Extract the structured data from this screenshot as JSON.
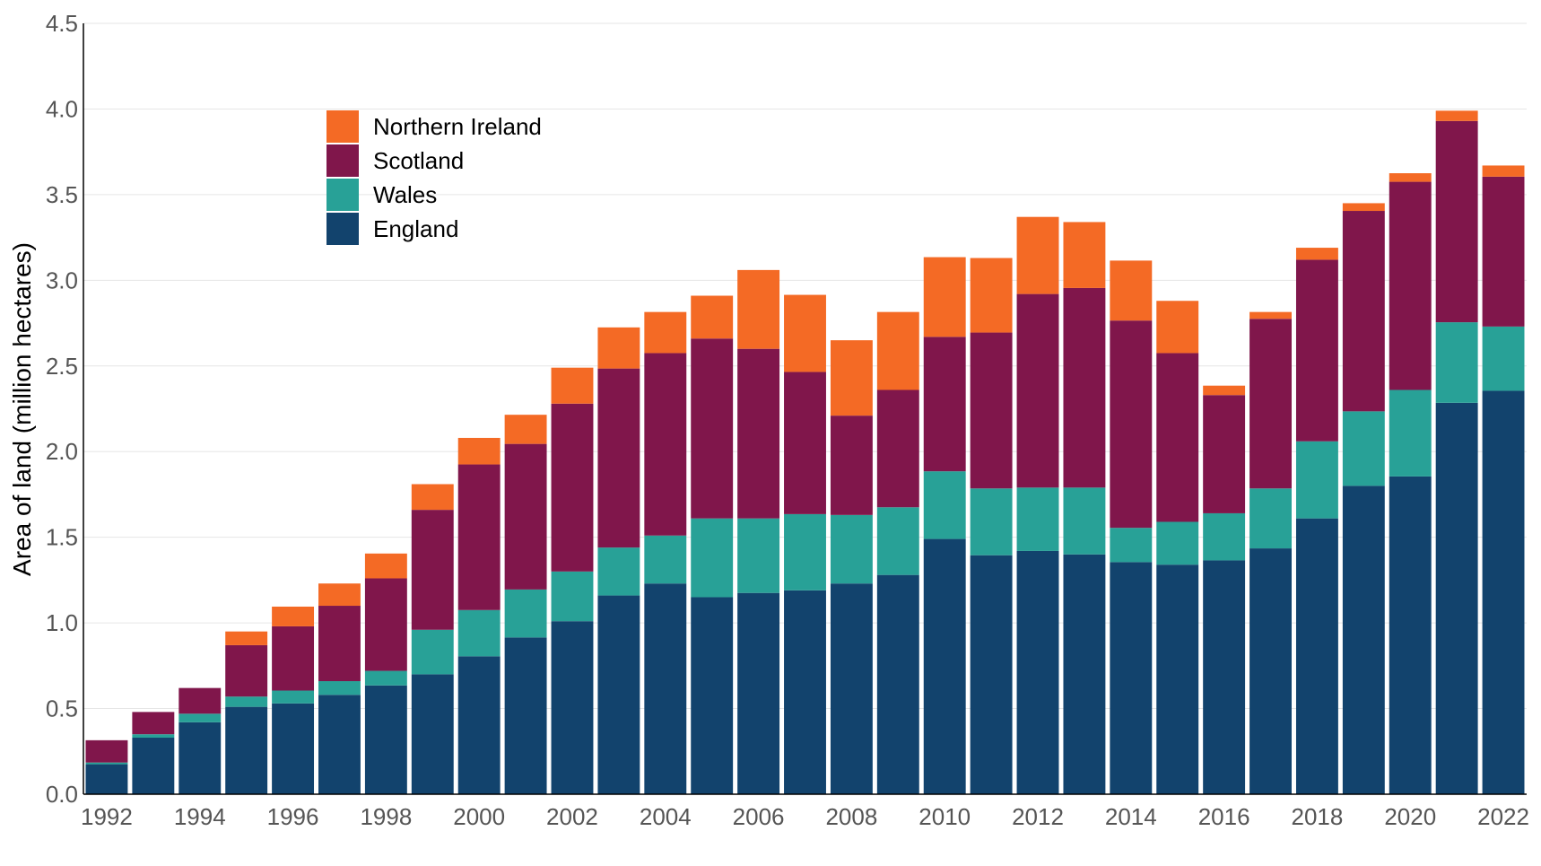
{
  "chart_data": {
    "type": "bar",
    "stacked": true,
    "title": "",
    "xlabel": "",
    "ylabel": "Area of land (million hectares)",
    "ylim": [
      0,
      4.5
    ],
    "yticks": [
      "0.0",
      "0.5",
      "1.0",
      "1.5",
      "2.0",
      "2.5",
      "3.0",
      "3.5",
      "4.0",
      "4.5"
    ],
    "xtick_labels": [
      "1992",
      "1994",
      "1996",
      "1998",
      "2000",
      "2002",
      "2004",
      "2006",
      "2008",
      "2010",
      "2012",
      "2014",
      "2016",
      "2018",
      "2020",
      "2022"
    ],
    "grid": "horizontal",
    "legend_placement": "top-left",
    "categories": [
      "1992",
      "1993",
      "1994",
      "1995",
      "1996",
      "1997",
      "1998",
      "1999",
      "2000",
      "2001",
      "2002",
      "2003",
      "2004",
      "2005",
      "2006",
      "2007",
      "2008",
      "2009",
      "2010",
      "2011",
      "2012",
      "2013",
      "2014",
      "2015",
      "2016",
      "2017",
      "2018",
      "2019",
      "2020",
      "2021",
      "2022"
    ],
    "series": [
      {
        "name": "England",
        "color": "#12436d",
        "values": [
          0.175,
          0.33,
          0.42,
          0.51,
          0.53,
          0.58,
          0.635,
          0.7,
          0.805,
          0.915,
          1.01,
          1.16,
          1.23,
          1.15,
          1.175,
          1.19,
          1.23,
          1.28,
          1.49,
          1.395,
          1.42,
          1.4,
          1.355,
          1.34,
          1.365,
          1.435,
          1.61,
          1.8,
          1.855,
          2.285,
          2.355
        ]
      },
      {
        "name": "Wales",
        "color": "#28a197",
        "values": [
          0.01,
          0.02,
          0.05,
          0.06,
          0.075,
          0.08,
          0.085,
          0.26,
          0.27,
          0.28,
          0.29,
          0.28,
          0.28,
          0.46,
          0.435,
          0.445,
          0.4,
          0.395,
          0.395,
          0.39,
          0.37,
          0.39,
          0.2,
          0.25,
          0.275,
          0.35,
          0.45,
          0.435,
          0.505,
          0.47,
          0.375
        ]
      },
      {
        "name": "Scotland",
        "color": "#80164b",
        "values": [
          0.13,
          0.13,
          0.15,
          0.3,
          0.375,
          0.44,
          0.54,
          0.7,
          0.85,
          0.85,
          0.98,
          1.045,
          1.065,
          1.05,
          0.99,
          0.83,
          0.58,
          0.685,
          0.785,
          0.91,
          1.13,
          1.165,
          1.21,
          0.985,
          0.69,
          0.99,
          1.06,
          1.17,
          1.215,
          1.175,
          0.875
        ]
      },
      {
        "name": "Northern Ireland",
        "color": "#f46a25",
        "values": [
          0,
          0,
          0,
          0.08,
          0.115,
          0.13,
          0.145,
          0.15,
          0.155,
          0.17,
          0.21,
          0.24,
          0.24,
          0.25,
          0.46,
          0.45,
          0.44,
          0.455,
          0.465,
          0.435,
          0.45,
          0.385,
          0.35,
          0.305,
          0.055,
          0.04,
          0.07,
          0.045,
          0.05,
          0.06,
          0.065
        ]
      }
    ],
    "legend_order": [
      "Northern Ireland",
      "Scotland",
      "Wales",
      "England"
    ]
  }
}
